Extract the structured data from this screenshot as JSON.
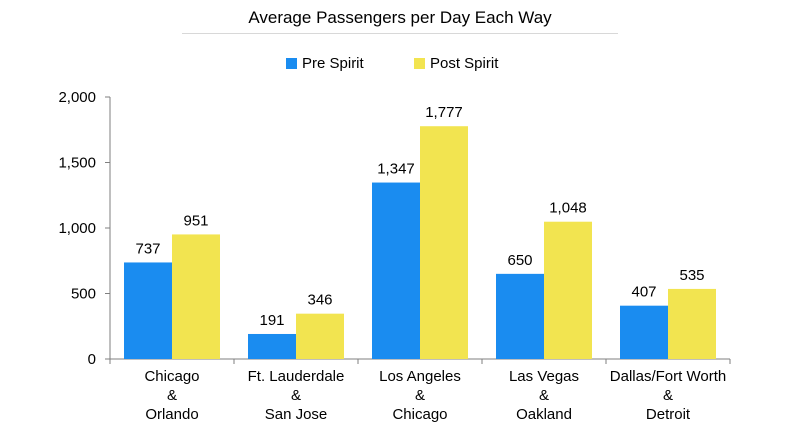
{
  "chart_data": {
    "type": "bar",
    "title": "Average Passengers per Day Each Way",
    "xlabel": "",
    "ylabel": "",
    "ylim": [
      0,
      2000
    ],
    "yticks": [
      {
        "value": 0,
        "label": "0"
      },
      {
        "value": 500,
        "label": "500"
      },
      {
        "value": 1000,
        "label": "1,000"
      },
      {
        "value": 1500,
        "label": "1,500"
      },
      {
        "value": 2000,
        "label": "2,000"
      }
    ],
    "grid": false,
    "legend_position": "top-center",
    "categories": [
      [
        "Chicago",
        "&",
        "Orlando"
      ],
      [
        "Ft. Lauderdale",
        "&",
        "San Jose"
      ],
      [
        "Los Angeles",
        "&",
        "Chicago"
      ],
      [
        "Las Vegas",
        "&",
        "Oakland"
      ],
      [
        "Dallas/Fort Worth",
        "&",
        "Detroit"
      ]
    ],
    "series": [
      {
        "name": "Pre Spirit",
        "color": "#1a8cf0",
        "values": [
          737,
          191,
          1347,
          650,
          407
        ],
        "labels": [
          "737",
          "191",
          "1,347",
          "650",
          "407"
        ]
      },
      {
        "name": "Post Spirit",
        "color": "#f2e450",
        "values": [
          951,
          346,
          1777,
          1048,
          535
        ],
        "labels": [
          "951",
          "346",
          "1,777",
          "1,048",
          "535"
        ]
      }
    ]
  }
}
